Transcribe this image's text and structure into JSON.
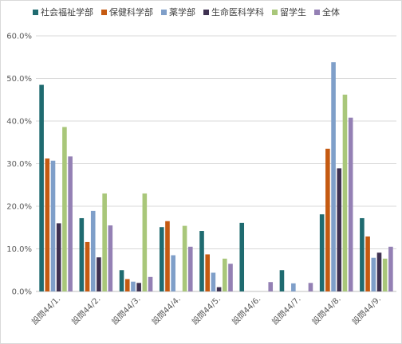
{
  "chart_data": {
    "type": "bar",
    "categories": [
      "設問44/1.",
      "設問44/2.",
      "設問44/3.",
      "設問44/4.",
      "設問44/5.",
      "設問44/6.",
      "設問44/7.",
      "設問44/8.",
      "設問44/9."
    ],
    "series": [
      {
        "name": "社会福祉学部",
        "color": "#1f6b70",
        "values": [
          48.5,
          17.2,
          5.0,
          15.1,
          14.2,
          16.1,
          5.0,
          18.1,
          17.2
        ]
      },
      {
        "name": "保健科学部",
        "color": "#c55a11",
        "values": [
          31.2,
          11.6,
          2.9,
          16.5,
          8.7,
          0,
          0,
          33.5,
          12.9
        ]
      },
      {
        "name": "薬学部",
        "color": "#7f9fc9",
        "values": [
          30.7,
          18.9,
          2.3,
          8.5,
          4.4,
          0,
          1.9,
          53.8,
          7.9
        ]
      },
      {
        "name": "生命医科学科",
        "color": "#3f3151",
        "values": [
          16.0,
          8.0,
          2.0,
          0,
          1.0,
          0,
          0,
          28.9,
          9.1
        ]
      },
      {
        "name": "留学生",
        "color": "#a9c77a",
        "values": [
          38.6,
          23.0,
          23.0,
          15.4,
          7.7,
          0,
          0,
          46.2,
          7.7
        ]
      },
      {
        "name": "全体",
        "color": "#9480b4",
        "values": [
          31.7,
          15.5,
          3.4,
          10.5,
          6.5,
          2.2,
          2.0,
          40.8,
          10.5
        ]
      }
    ],
    "y_ticks": [
      "0.0%",
      "10.0%",
      "20.0%",
      "30.0%",
      "40.0%",
      "50.0%",
      "60.0%"
    ],
    "ylim": [
      0,
      60
    ],
    "gridlines": true,
    "legend_position": "top"
  }
}
